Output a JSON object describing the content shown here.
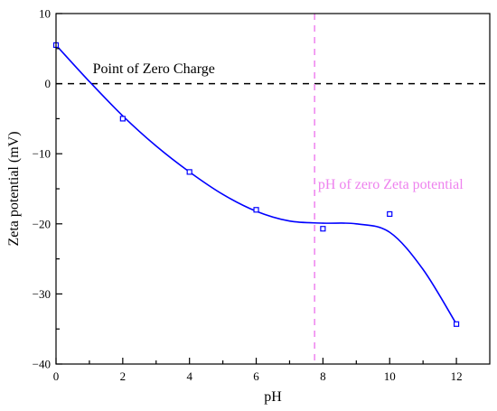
{
  "chart_data": {
    "type": "scatter",
    "xlabel": "pH",
    "ylabel": "Zeta potential (mV)",
    "xlim": [
      0,
      13
    ],
    "ylim": [
      -40,
      10
    ],
    "xticks": [
      "0",
      "2",
      "4",
      "6",
      "8",
      "10",
      "12"
    ],
    "yticks": [
      "10",
      "0",
      "−10",
      "−20",
      "−30",
      "−40"
    ],
    "series": [
      {
        "marker": "open-square",
        "color": "#0000ff",
        "points": [
          {
            "x": 0,
            "y": 5.5
          },
          {
            "x": 2,
            "y": -5.0
          },
          {
            "x": 4,
            "y": -12.6
          },
          {
            "x": 6,
            "y": -18.0
          },
          {
            "x": 8,
            "y": -20.7
          },
          {
            "x": 10,
            "y": -18.6
          },
          {
            "x": 12,
            "y": -34.3
          }
        ]
      }
    ],
    "fit_curve": {
      "color": "#0000ff",
      "points": [
        {
          "x": 0,
          "y": 5.5
        },
        {
          "x": 1,
          "y": 0.3
        },
        {
          "x": 2,
          "y": -4.6
        },
        {
          "x": 3,
          "y": -8.9
        },
        {
          "x": 4,
          "y": -12.6
        },
        {
          "x": 5,
          "y": -15.8
        },
        {
          "x": 6,
          "y": -18.2
        },
        {
          "x": 7,
          "y": -19.6
        },
        {
          "x": 8,
          "y": -19.9
        },
        {
          "x": 9,
          "y": -20.0
        },
        {
          "x": 10,
          "y": -21.2
        },
        {
          "x": 11,
          "y": -26.5
        },
        {
          "x": 12,
          "y": -34.3
        }
      ]
    },
    "reference_lines": [
      {
        "orientation": "horizontal",
        "value": 0,
        "color": "#000000",
        "style": "dashed",
        "label": "Point of Zero Charge",
        "label_x": 1.1,
        "label_y": 1.5
      },
      {
        "orientation": "vertical",
        "value": 7.75,
        "color": "#ee82ee",
        "style": "dashed",
        "label": "pH of zero Zeta potential",
        "label_x": 7.85,
        "label_y": -15.0
      }
    ],
    "grid": false
  }
}
